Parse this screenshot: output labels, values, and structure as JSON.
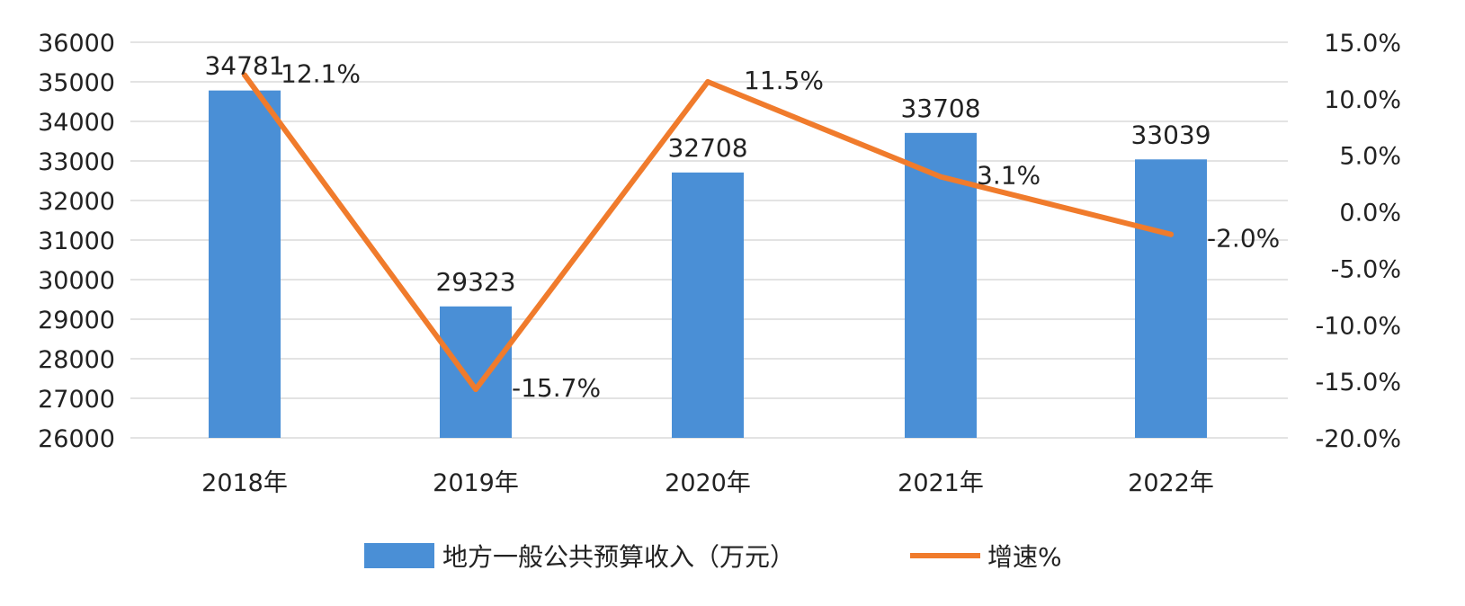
{
  "chart_data": {
    "type": "bar",
    "categories": [
      "2018年",
      "2019年",
      "2020年",
      "2021年",
      "2022年"
    ],
    "series": [
      {
        "name": "地方一般公共预算收入（万元）",
        "type": "bar",
        "axis": "left",
        "values": [
          34781,
          29323,
          32708,
          33708,
          33039
        ],
        "labels": [
          "34781",
          "29323",
          "32708",
          "33708",
          "33039"
        ],
        "color": "#4a8fd6"
      },
      {
        "name": "增速%",
        "type": "line",
        "axis": "right",
        "values": [
          12.1,
          -15.7,
          11.5,
          3.1,
          -2.0
        ],
        "labels": [
          "12.1%",
          "-15.7%",
          "11.5%",
          "3.1%",
          "-2.0%"
        ],
        "color": "#f07b2c"
      }
    ],
    "y_left": {
      "range": [
        26000,
        36000
      ],
      "ticks": [
        "26000",
        "27000",
        "28000",
        "29000",
        "30000",
        "31000",
        "32000",
        "33000",
        "34000",
        "35000",
        "36000"
      ]
    },
    "y_right": {
      "range": [
        -20.0,
        15.0
      ],
      "ticks": [
        "-20.0%",
        "-15.0%",
        "-10.0%",
        "-5.0%",
        "0.0%",
        "5.0%",
        "10.0%",
        "15.0%"
      ]
    },
    "grid": true,
    "legend": "bottom"
  }
}
